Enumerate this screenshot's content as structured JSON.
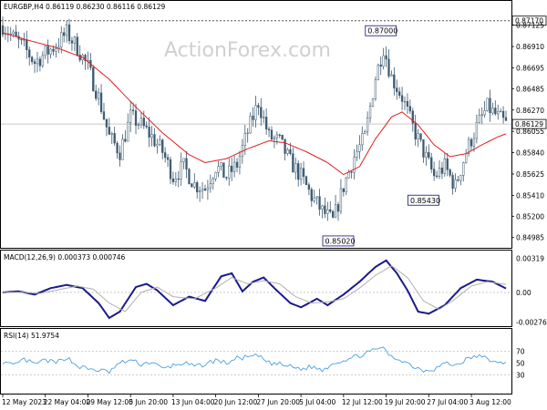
{
  "watermark": "ActionForex.com",
  "chart_data": [
    {
      "type": "candlestick",
      "title": "EURGBP,H4  0.86119 0.86230 0.86116 0.86129",
      "ylim": [
        0.849,
        0.8725
      ],
      "y_ticks": [
        "0.87125",
        "0.86910",
        "0.86695",
        "0.86485",
        "0.86270",
        "0.86055",
        "0.85840",
        "0.85625",
        "0.85410",
        "0.85200",
        "0.84985"
      ],
      "y_tick_values": [
        0.87125,
        0.8691,
        0.86695,
        0.86485,
        0.8627,
        0.86055,
        0.8584,
        0.85625,
        0.8541,
        0.852,
        0.84985
      ],
      "x_ticks": [
        "12 May 2023",
        "22 May 04:00",
        "29 May 12:00",
        "5 Jun 20:00",
        "13 Jun 04:00",
        "20 Jun 12:00",
        "27 Jun 20:00",
        "5 Jul 04:00",
        "12 Jul 12:00",
        "19 Jul 20:00",
        "27 Jul 04:00",
        "3 Aug 12:00"
      ],
      "x_tick_index": [
        0,
        16,
        32,
        48,
        64,
        80,
        96,
        112,
        128,
        144,
        160,
        176
      ],
      "bars": 190,
      "close_path": [
        [
          0,
          0.8712
        ],
        [
          4,
          0.87
        ],
        [
          8,
          0.869
        ],
        [
          12,
          0.8675
        ],
        [
          16,
          0.8684
        ],
        [
          20,
          0.8692
        ],
        [
          24,
          0.8705
        ],
        [
          28,
          0.869
        ],
        [
          32,
          0.867
        ],
        [
          36,
          0.864
        ],
        [
          40,
          0.86
        ],
        [
          44,
          0.8585
        ],
        [
          48,
          0.862
        ],
        [
          52,
          0.8612
        ],
        [
          56,
          0.86
        ],
        [
          60,
          0.8585
        ],
        [
          64,
          0.856
        ],
        [
          68,
          0.857
        ],
        [
          72,
          0.8552
        ],
        [
          76,
          0.8548
        ],
        [
          80,
          0.857
        ],
        [
          84,
          0.856
        ],
        [
          88,
          0.8572
        ],
        [
          92,
          0.8605
        ],
        [
          96,
          0.8635
        ],
        [
          100,
          0.86
        ],
        [
          104,
          0.8595
        ],
        [
          108,
          0.8575
        ],
        [
          112,
          0.856
        ],
        [
          116,
          0.854
        ],
        [
          120,
          0.8525
        ],
        [
          124,
          0.8515
        ],
        [
          128,
          0.855
        ],
        [
          132,
          0.858
        ],
        [
          136,
          0.86
        ],
        [
          140,
          0.866
        ],
        [
          143,
          0.869
        ],
        [
          146,
          0.866
        ],
        [
          150,
          0.864
        ],
        [
          154,
          0.861
        ],
        [
          158,
          0.8585
        ],
        [
          162,
          0.856
        ],
        [
          166,
          0.857
        ],
        [
          170,
          0.855
        ],
        [
          174,
          0.8585
        ],
        [
          178,
          0.861
        ],
        [
          182,
          0.863
        ],
        [
          186,
          0.862
        ],
        [
          189,
          0.86129
        ]
      ],
      "ma_path": [
        [
          0,
          0.8705
        ],
        [
          10,
          0.8697
        ],
        [
          20,
          0.869
        ],
        [
          30,
          0.868
        ],
        [
          40,
          0.8658
        ],
        [
          50,
          0.863
        ],
        [
          60,
          0.8604
        ],
        [
          70,
          0.8582
        ],
        [
          76,
          0.8574
        ],
        [
          84,
          0.8578
        ],
        [
          92,
          0.8588
        ],
        [
          100,
          0.8596
        ],
        [
          106,
          0.8594
        ],
        [
          114,
          0.8585
        ],
        [
          122,
          0.8574
        ],
        [
          128,
          0.8562
        ],
        [
          134,
          0.857
        ],
        [
          140,
          0.8598
        ],
        [
          146,
          0.862
        ],
        [
          150,
          0.8625
        ],
        [
          156,
          0.8612
        ],
        [
          162,
          0.8592
        ],
        [
          168,
          0.858
        ],
        [
          174,
          0.8583
        ],
        [
          180,
          0.8592
        ],
        [
          186,
          0.86
        ],
        [
          189,
          0.8603
        ]
      ],
      "annotations": [
        {
          "text": "0.87000",
          "bar": 142,
          "value": 0.87
        },
        {
          "text": "0.85430",
          "bar": 158,
          "value": 0.8543
        },
        {
          "text": "0.85020",
          "bar": 126,
          "value": 0.8502
        }
      ],
      "levels": [
        {
          "value": 0.8717,
          "label": "0.87170",
          "style": "dotted"
        },
        {
          "value": 0.86129,
          "label": "0.86129",
          "style": "solid-light"
        }
      ]
    },
    {
      "type": "line",
      "title": "MACD(12,26,9) 0.000373 0.000746",
      "ylim": [
        -0.003,
        0.0035
      ],
      "y_ticks": [
        "0.00319",
        "0.00",
        "-0.002769"
      ],
      "y_tick_values": [
        0.00319,
        0.0,
        -0.002769
      ],
      "series": [
        {
          "name": "MACD",
          "points": [
            [
              0,
              0.0
            ],
            [
              6,
              0.0001
            ],
            [
              12,
              -0.0002
            ],
            [
              18,
              0.0004
            ],
            [
              24,
              0.0007
            ],
            [
              30,
              0.0004
            ],
            [
              36,
              -0.001
            ],
            [
              40,
              -0.0024
            ],
            [
              44,
              -0.0018
            ],
            [
              50,
              0.0005
            ],
            [
              54,
              0.0008
            ],
            [
              58,
              0.0002
            ],
            [
              64,
              -0.0012
            ],
            [
              70,
              -0.0004
            ],
            [
              76,
              -0.0008
            ],
            [
              82,
              0.0015
            ],
            [
              86,
              0.0018
            ],
            [
              90,
              0.0001
            ],
            [
              94,
              0.001
            ],
            [
              98,
              0.0014
            ],
            [
              102,
              0.0004
            ],
            [
              108,
              -0.001
            ],
            [
              112,
              -0.0014
            ],
            [
              118,
              -0.0006
            ],
            [
              122,
              -0.0012
            ],
            [
              128,
              -0.0002
            ],
            [
              134,
              0.001
            ],
            [
              140,
              0.0024
            ],
            [
              144,
              0.003
            ],
            [
              148,
              0.0018
            ],
            [
              152,
              0.0002
            ],
            [
              156,
              -0.0018
            ],
            [
              160,
              -0.002
            ],
            [
              166,
              -0.0012
            ],
            [
              172,
              0.0004
            ],
            [
              178,
              0.0012
            ],
            [
              184,
              0.001
            ],
            [
              189,
              0.000373
            ]
          ]
        },
        {
          "name": "Signal",
          "points": [
            [
              0,
              0.0
            ],
            [
              8,
              0.0
            ],
            [
              14,
              -0.0001
            ],
            [
              20,
              0.0002
            ],
            [
              28,
              0.0006
            ],
            [
              34,
              0.0003
            ],
            [
              40,
              -0.001
            ],
            [
              46,
              -0.0018
            ],
            [
              52,
              0.0
            ],
            [
              58,
              0.0005
            ],
            [
              64,
              -0.0004
            ],
            [
              72,
              -0.0006
            ],
            [
              80,
              0.0004
            ],
            [
              86,
              0.0014
            ],
            [
              92,
              0.0008
            ],
            [
              98,
              0.0011
            ],
            [
              104,
              0.0008
            ],
            [
              110,
              -0.0004
            ],
            [
              116,
              -0.001
            ],
            [
              122,
              -0.0009
            ],
            [
              128,
              -0.0006
            ],
            [
              134,
              0.0004
            ],
            [
              140,
              0.0016
            ],
            [
              146,
              0.0025
            ],
            [
              152,
              0.0014
            ],
            [
              158,
              -0.0008
            ],
            [
              164,
              -0.0016
            ],
            [
              170,
              -0.0006
            ],
            [
              176,
              0.0006
            ],
            [
              182,
              0.001
            ],
            [
              189,
              0.000746
            ]
          ]
        }
      ]
    },
    {
      "type": "line",
      "title": "RSI(14) 51.9754",
      "ylim": [
        0,
        100
      ],
      "y_ticks": [
        "70",
        "50",
        "30"
      ],
      "y_tick_values": [
        70,
        50,
        30
      ],
      "series": [
        {
          "name": "RSI",
          "points": [
            [
              0,
              52
            ],
            [
              4,
              45
            ],
            [
              8,
              56
            ],
            [
              12,
              48
            ],
            [
              16,
              55
            ],
            [
              20,
              50
            ],
            [
              24,
              60
            ],
            [
              28,
              45
            ],
            [
              32,
              40
            ],
            [
              36,
              38
            ],
            [
              40,
              35
            ],
            [
              44,
              50
            ],
            [
              48,
              55
            ],
            [
              52,
              48
            ],
            [
              56,
              52
            ],
            [
              60,
              40
            ],
            [
              64,
              46
            ],
            [
              68,
              50
            ],
            [
              72,
              44
            ],
            [
              76,
              48
            ],
            [
              80,
              55
            ],
            [
              84,
              50
            ],
            [
              88,
              58
            ],
            [
              92,
              60
            ],
            [
              96,
              62
            ],
            [
              100,
              50
            ],
            [
              104,
              48
            ],
            [
              108,
              44
            ],
            [
              112,
              40
            ],
            [
              116,
              44
            ],
            [
              120,
              38
            ],
            [
              124,
              50
            ],
            [
              128,
              55
            ],
            [
              132,
              60
            ],
            [
              136,
              66
            ],
            [
              140,
              72
            ],
            [
              142,
              78
            ],
            [
              146,
              60
            ],
            [
              150,
              55
            ],
            [
              154,
              45
            ],
            [
              158,
              38
            ],
            [
              162,
              40
            ],
            [
              166,
              50
            ],
            [
              170,
              46
            ],
            [
              174,
              56
            ],
            [
              178,
              62
            ],
            [
              182,
              58
            ],
            [
              186,
              48
            ],
            [
              189,
              51.9754
            ]
          ]
        }
      ]
    }
  ],
  "colors": {
    "candle": "#3c5a70",
    "ma": "#e02020",
    "macd": "#1a1a8c",
    "signal": "#b0b0b0",
    "rsi": "#4aa0e0",
    "grid": "#c0c0c0",
    "border": "#000000"
  }
}
